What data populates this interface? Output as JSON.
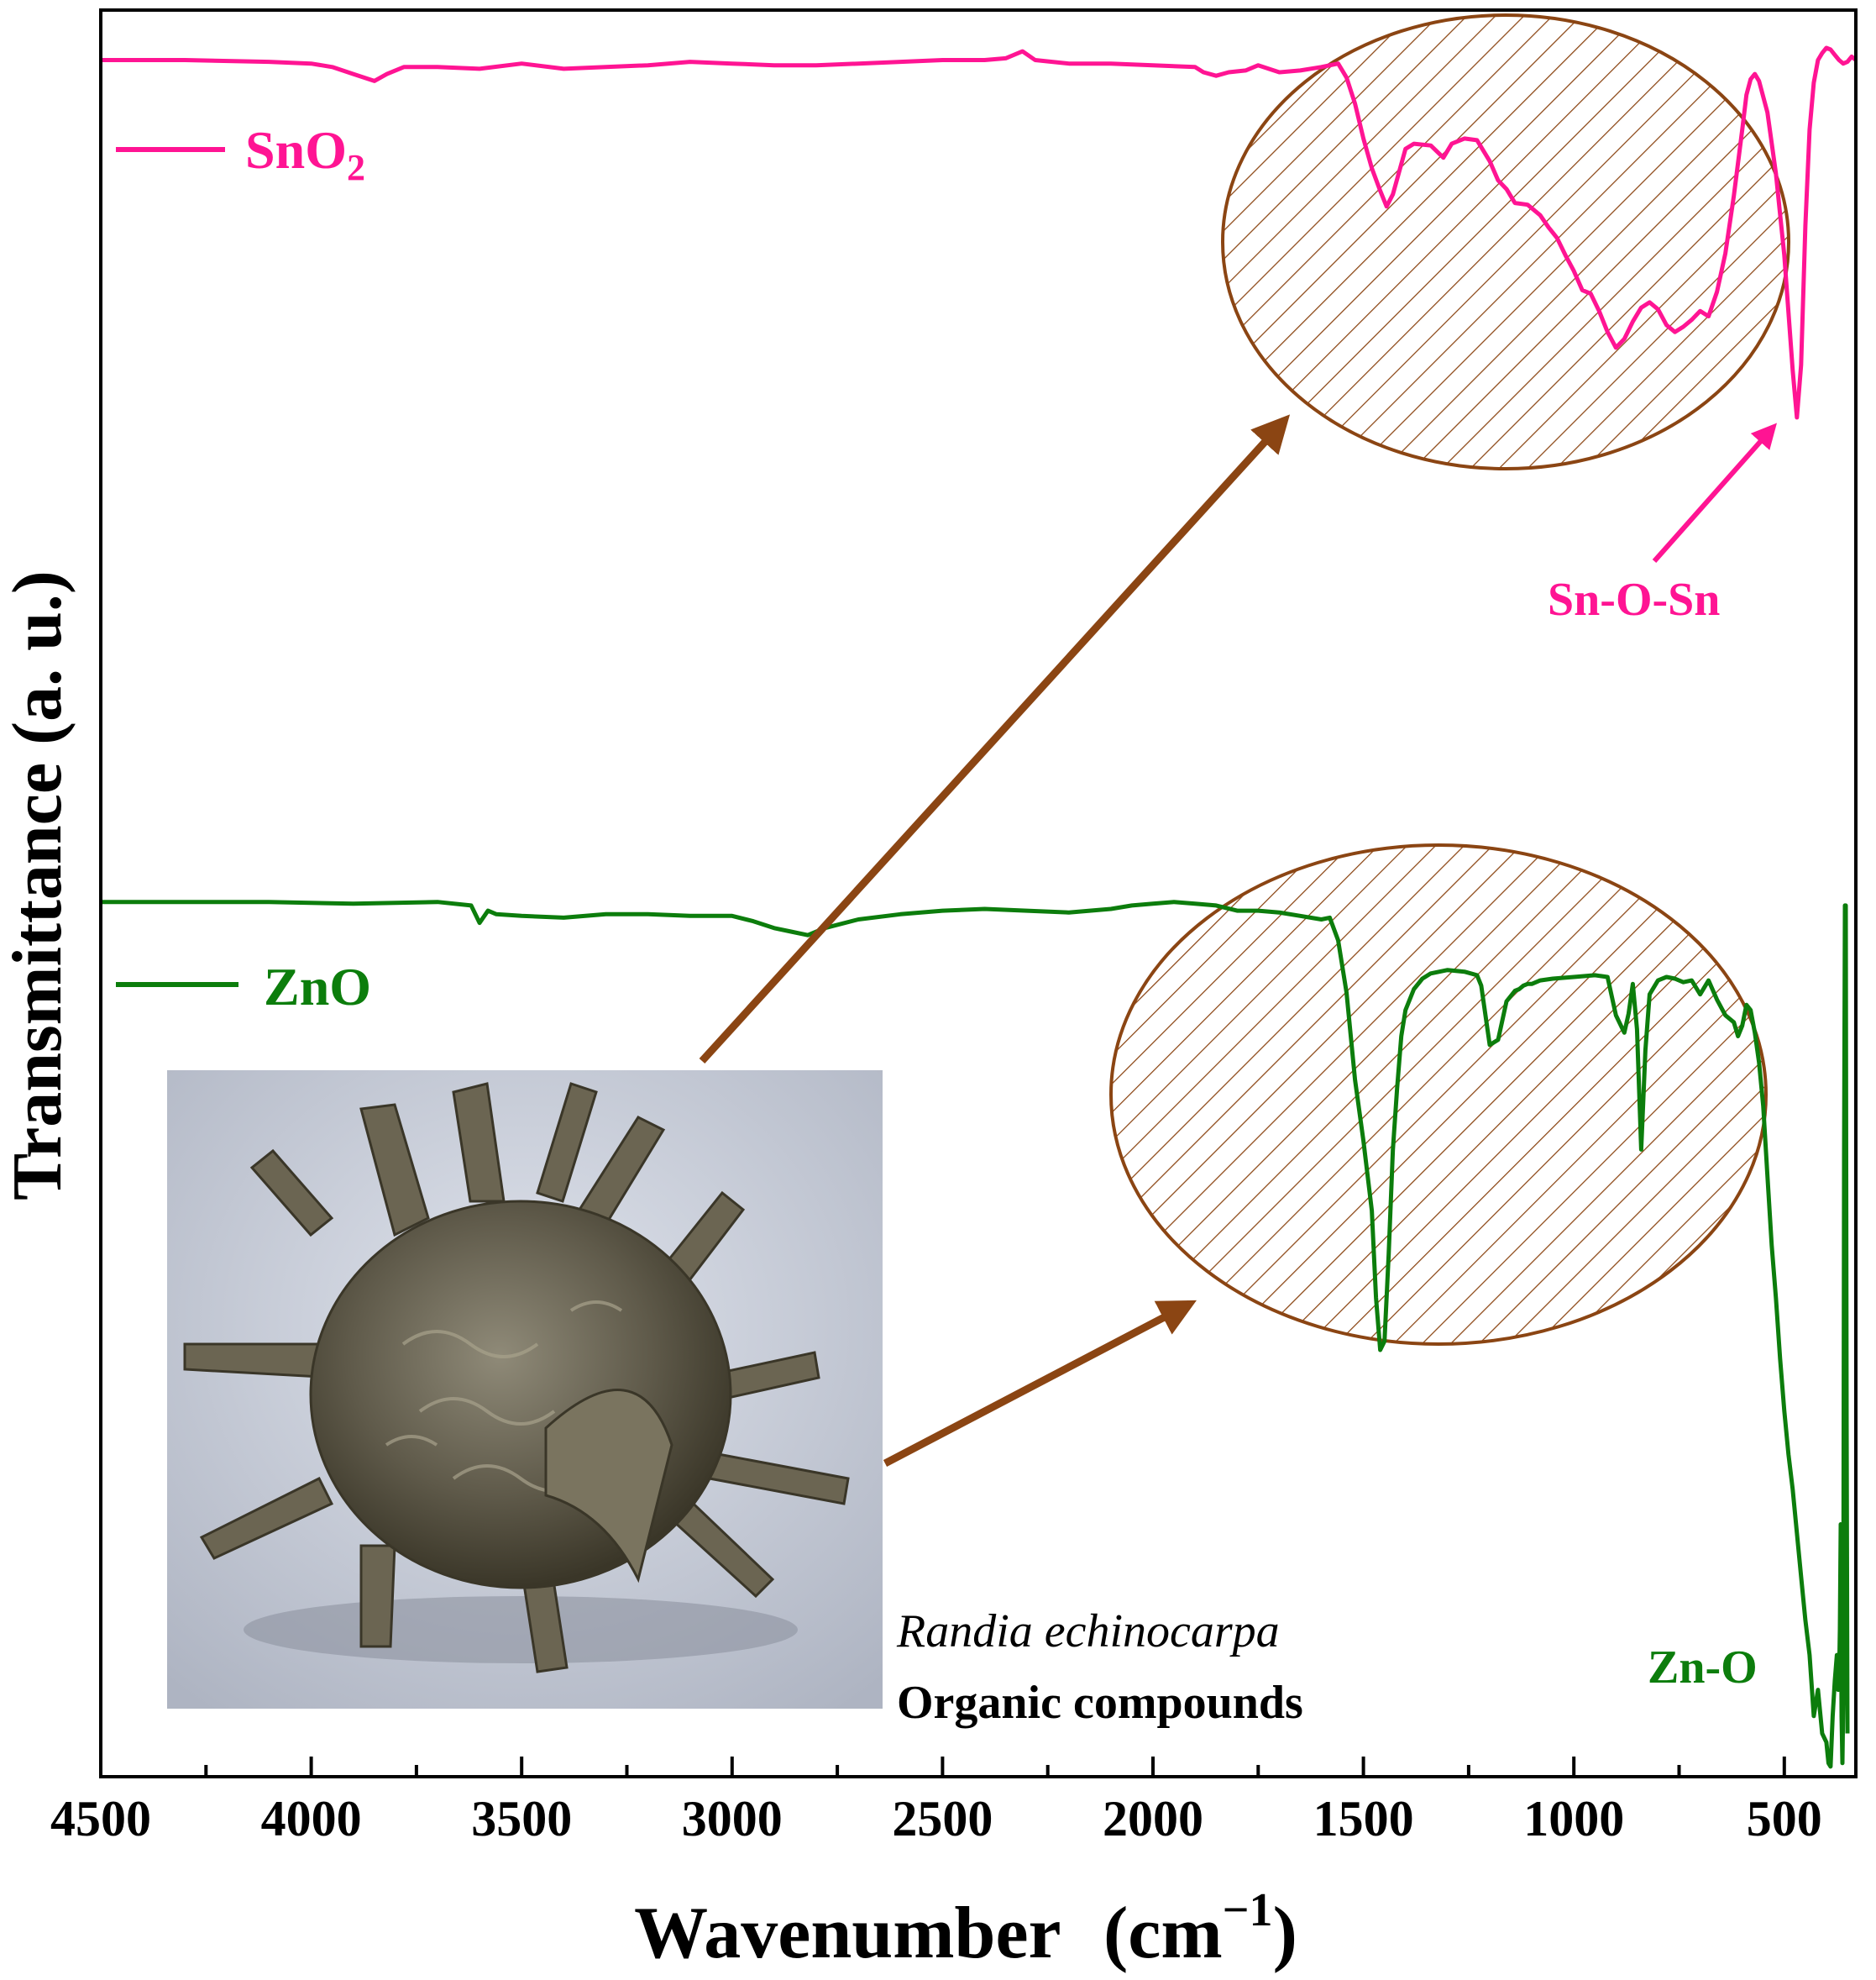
{
  "chart_data": {
    "type": "line",
    "xlabel": "Wavenumber",
    "xlabel_unit": "(cm",
    "xlabel_unit_sup": "−1",
    "xlabel_unit_close": ")",
    "ylabel": "Transmittance (a. u.)",
    "xlim": [
      4500,
      330
    ],
    "x_reversed": true,
    "xticks": [
      4500,
      4000,
      3500,
      3000,
      2500,
      2000,
      1500,
      1000,
      500
    ],
    "ylim": [
      0,
      100
    ],
    "grid": false,
    "legend_position": "left",
    "series": [
      {
        "name": "SnO",
        "name_sub": "2",
        "color": "#ff1493",
        "x": [
          4500,
          4300,
          4100,
          4000,
          3950,
          3900,
          3850,
          3820,
          3780,
          3700,
          3600,
          3500,
          3400,
          3300,
          3200,
          3100,
          3000,
          2900,
          2800,
          2700,
          2600,
          2500,
          2400,
          2350,
          2310,
          2280,
          2200,
          2100,
          2000,
          1900,
          1880,
          1850,
          1820,
          1780,
          1750,
          1700,
          1650,
          1600,
          1560,
          1540,
          1520,
          1500,
          1480,
          1460,
          1445,
          1430,
          1400,
          1380,
          1340,
          1310,
          1290,
          1260,
          1230,
          1200,
          1180,
          1160,
          1140,
          1110,
          1080,
          1060,
          1040,
          1020,
          1000,
          980,
          960,
          940,
          920,
          900,
          880,
          860,
          840,
          820,
          800,
          780,
          760,
          740,
          720,
          700,
          680,
          660,
          640,
          620,
          600,
          590,
          580,
          570,
          560,
          540,
          520,
          500,
          490,
          480,
          470,
          460,
          450,
          440,
          430,
          420,
          410,
          400,
          390,
          380,
          370,
          360,
          350,
          340,
          330
        ],
        "y": [
          98.0,
          98.0,
          97.9,
          97.8,
          97.6,
          97.2,
          96.8,
          97.2,
          97.6,
          97.6,
          97.5,
          97.8,
          97.5,
          97.6,
          97.7,
          97.9,
          97.8,
          97.7,
          97.7,
          97.8,
          97.9,
          98.0,
          98.0,
          98.1,
          98.5,
          98.0,
          97.8,
          97.8,
          97.7,
          97.6,
          97.3,
          97.1,
          97.3,
          97.4,
          97.7,
          97.3,
          97.4,
          97.6,
          97.8,
          97.0,
          95.5,
          93.5,
          91.8,
          90.5,
          89.6,
          90.3,
          92.9,
          93.2,
          93.1,
          92.4,
          93.2,
          93.5,
          93.4,
          92.2,
          91.1,
          90.6,
          89.8,
          89.7,
          89.1,
          88.4,
          87.8,
          86.8,
          85.9,
          84.8,
          84.6,
          83.6,
          82.4,
          81.5,
          82.0,
          83.0,
          83.8,
          84.1,
          83.7,
          82.8,
          82.4,
          82.7,
          83.1,
          83.6,
          83.3,
          84.7,
          86.9,
          90.2,
          94.0,
          96.0,
          96.9,
          97.2,
          96.8,
          95.0,
          91.5,
          86.8,
          83.5,
          80.2,
          77.5,
          80.5,
          88.5,
          94.0,
          96.7,
          98.0,
          98.4,
          98.7,
          98.6,
          98.3,
          98.0,
          97.8,
          97.9,
          98.2,
          98.0
        ]
      },
      {
        "name": "ZnO",
        "color": "#0c7d0c",
        "x": [
          4500,
          4300,
          4100,
          3900,
          3700,
          3620,
          3600,
          3580,
          3560,
          3500,
          3400,
          3300,
          3200,
          3100,
          3000,
          2950,
          2900,
          2860,
          2820,
          2780,
          2700,
          2600,
          2500,
          2400,
          2300,
          2200,
          2150,
          2100,
          2050,
          2000,
          1950,
          1900,
          1850,
          1800,
          1750,
          1700,
          1650,
          1600,
          1580,
          1560,
          1540,
          1520,
          1500,
          1480,
          1470,
          1460,
          1450,
          1440,
          1430,
          1420,
          1410,
          1400,
          1380,
          1360,
          1340,
          1300,
          1260,
          1230,
          1220,
          1200,
          1180,
          1160,
          1140,
          1130,
          1120,
          1110,
          1100,
          1080,
          1050,
          1000,
          950,
          920,
          900,
          880,
          870,
          860,
          850,
          840,
          830,
          820,
          800,
          780,
          760,
          740,
          720,
          700,
          680,
          660,
          640,
          620,
          610,
          600,
          590,
          580,
          570,
          560,
          550,
          540,
          530,
          520,
          510,
          500,
          490,
          480,
          470,
          460,
          450,
          440,
          430,
          420,
          410,
          400,
          395,
          390,
          385,
          380,
          375,
          372,
          370,
          368,
          366,
          364,
          362,
          360,
          358,
          356,
          354,
          352,
          350
        ],
        "y": [
          49.7,
          49.7,
          49.7,
          49.6,
          49.7,
          49.5,
          48.5,
          49.2,
          49.0,
          48.9,
          48.8,
          49.0,
          49.0,
          48.9,
          48.9,
          48.6,
          48.2,
          48.0,
          47.8,
          48.2,
          48.7,
          49.0,
          49.2,
          49.3,
          49.2,
          49.1,
          49.2,
          49.3,
          49.5,
          49.6,
          49.7,
          49.6,
          49.5,
          49.2,
          49.2,
          49.1,
          48.9,
          48.7,
          48.8,
          47.5,
          44.5,
          39.5,
          36.0,
          32.0,
          27.0,
          24.0,
          24.5,
          29.5,
          35.5,
          39.0,
          42.0,
          43.5,
          44.7,
          45.3,
          45.6,
          45.8,
          45.7,
          45.5,
          44.9,
          41.5,
          41.8,
          44.0,
          44.6,
          44.7,
          44.9,
          45.0,
          45.0,
          45.2,
          45.3,
          45.4,
          45.5,
          45.4,
          43.2,
          42.2,
          43.3,
          45.0,
          42.4,
          35.5,
          41.2,
          44.4,
          45.2,
          45.4,
          45.3,
          45.1,
          45.2,
          44.4,
          45.2,
          44.1,
          43.2,
          42.8,
          42.0,
          42.6,
          43.8,
          43.5,
          42.2,
          40.5,
          38.0,
          34.0,
          30.0,
          27.0,
          23.5,
          20.5,
          18.0,
          16.0,
          13.5,
          11.0,
          8.5,
          6.5,
          3.0,
          4.5,
          2.0,
          1.5,
          0.3,
          0.1,
          3.0,
          5.0,
          6.5,
          4.5,
          5.0,
          8.0,
          14.0,
          3.0,
          0.3,
          4.0,
          35.0,
          49.5,
          49.5,
          20.0,
          2.0
        ]
      }
    ],
    "annotations": {
      "sn_o_sn": "Sn-O-Sn",
      "zn_o": "Zn-O",
      "plant_name": "Randia echinocarpa",
      "plant_caption": "Organic compounds"
    },
    "colors": {
      "highlight": "#8b4513",
      "axis": "#000000"
    }
  }
}
